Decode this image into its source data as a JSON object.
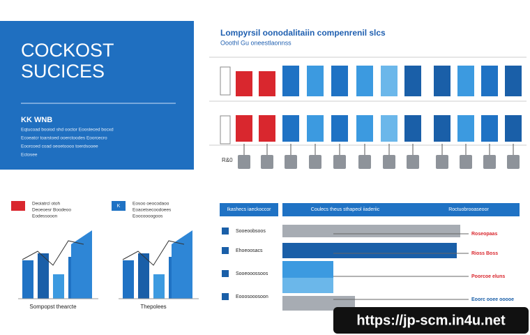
{
  "hero": {
    "title_line1": "COCKOST",
    "title_line2": "SUCICES",
    "tag": "KK  WNB",
    "lines": [
      "Eqtucoad booiod shd ooctor Eoosteced bocxd",
      "Ecoeatcr toarstoed ooerctoodes Eoorcecro",
      "Eoorcoed coad oeoetoooo toerdsooee",
      "Ectosee"
    ]
  },
  "top_panel": {
    "title": "Lompyrsil oonodalitaiin compenrenil slcs",
    "subtitle": "Ooothl  Gu oneestlaonnss",
    "row_label": "R&0"
  },
  "left_charts": [
    {
      "badge": "",
      "lines": [
        "Deoiatrcl  otoh",
        "Deoeoesr Boodeoo",
        "Eodessooon"
      ],
      "caption": "Sompopst thearcte"
    },
    {
      "badge": "K",
      "lines": [
        "Eosoo oeocodaoo",
        "Eoacetsecoodoees",
        "Eoocoooogoos"
      ],
      "caption": "Thepolees"
    }
  ],
  "bar_panel": {
    "headers": [
      "Ikashecs iaeckoccor",
      "Coulecs theus sthapeol iiaderiic",
      "Roctuobrooaseoor"
    ],
    "rows": [
      {
        "label": "Sooeoobsoos",
        "note": "Roseopaas"
      },
      {
        "label": "Ehoeoosacs",
        "note": "Rioss  Boss"
      },
      {
        "label": "Sooeooossoos",
        "note": "Poorcoe eluns"
      },
      {
        "label": "Eooosooosoon",
        "note": "Eoorc ooee ooooe"
      }
    ]
  },
  "watermark": "https://jp-scm.in4u.net"
}
